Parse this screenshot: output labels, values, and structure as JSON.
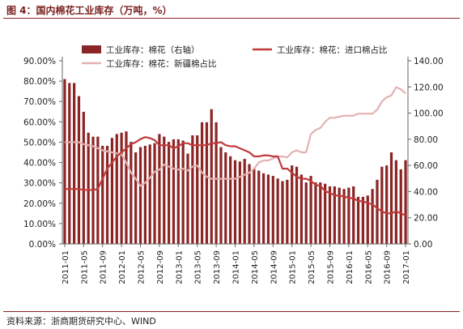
{
  "title": "图 4：国内棉花工业库存（万吨，%）",
  "source": "资料来源：浙商期货研究中心、WIND",
  "colors": {
    "bar": "#8b2525",
    "line_import": "#c0393b",
    "line_xinjiang": "#e3b1b1",
    "axis": "#666666"
  },
  "chart_data": {
    "type": "bar",
    "title": "",
    "legend_position": "top",
    "grid": false,
    "y_left": {
      "range": [
        0,
        90
      ],
      "ticks": [
        "0.00%",
        "10.00%",
        "20.00%",
        "30.00%",
        "40.00%",
        "50.00%",
        "60.00%",
        "70.00%",
        "80.00%",
        "90.00%"
      ]
    },
    "y_right": {
      "range": [
        0,
        140
      ],
      "ticks": [
        "0.00",
        "20.00",
        "40.00",
        "60.00",
        "80.00",
        "100.00",
        "120.00",
        "140.00"
      ]
    },
    "x_tick_labels": [
      "2011-01",
      "2011-05",
      "2011-09",
      "2012-01",
      "2012-05",
      "2012-09",
      "2013-01",
      "2013-05",
      "2013-09",
      "2014-01",
      "2014-05",
      "2014-09",
      "2015-01",
      "2015-05",
      "2015-09",
      "2016-01",
      "2016-05",
      "2016-09",
      "2017-01"
    ],
    "months": [
      "2011-01",
      "2011-02",
      "2011-03",
      "2011-04",
      "2011-05",
      "2011-06",
      "2011-07",
      "2011-08",
      "2011-09",
      "2011-10",
      "2011-11",
      "2011-12",
      "2012-01",
      "2012-02",
      "2012-03",
      "2012-04",
      "2012-05",
      "2012-06",
      "2012-07",
      "2012-08",
      "2012-09",
      "2012-10",
      "2012-11",
      "2012-12",
      "2013-01",
      "2013-02",
      "2013-03",
      "2013-04",
      "2013-05",
      "2013-06",
      "2013-07",
      "2013-08",
      "2013-09",
      "2013-10",
      "2013-11",
      "2013-12",
      "2014-01",
      "2014-02",
      "2014-03",
      "2014-04",
      "2014-05",
      "2014-06",
      "2014-07",
      "2014-08",
      "2014-09",
      "2014-10",
      "2014-11",
      "2014-12",
      "2015-01",
      "2015-02",
      "2015-03",
      "2015-04",
      "2015-05",
      "2015-06",
      "2015-07",
      "2015-08",
      "2015-09",
      "2015-10",
      "2015-11",
      "2015-12",
      "2016-01",
      "2016-02",
      "2016-03",
      "2016-04",
      "2016-05",
      "2016-06",
      "2016-07",
      "2016-08",
      "2016-09",
      "2016-10",
      "2016-11",
      "2016-12",
      "2017-01"
    ],
    "series": [
      {
        "name": "工业库存：棉花（右轴）",
        "type": "bar",
        "axis": "right",
        "values": [
          126,
          123,
          123,
          113,
          101,
          85,
          82,
          82,
          75,
          75,
          81,
          84,
          85,
          86,
          78,
          70,
          74,
          75,
          76,
          77,
          84,
          82,
          78,
          80,
          80,
          79,
          69,
          83,
          83,
          93,
          93,
          103,
          93,
          74,
          70,
          67,
          64,
          63,
          65,
          61,
          58,
          56,
          54,
          53,
          52,
          50,
          48,
          49,
          60,
          59,
          53,
          47,
          52,
          47,
          47,
          46,
          44,
          44,
          43,
          42,
          43,
          44,
          36,
          36,
          37,
          42,
          49,
          59,
          60,
          70,
          64,
          57,
          64
        ]
      },
      {
        "name": "工业库存：棉花：进口棉占比",
        "type": "line",
        "axis": "left",
        "values": [
          27,
          27,
          27,
          27,
          26.5,
          26.5,
          26.5,
          27,
          32,
          37,
          40,
          43,
          45,
          47,
          49,
          50,
          51.5,
          52.5,
          52,
          51,
          48.5,
          48.5,
          48.5,
          47,
          48,
          49.5,
          49.5,
          48.5,
          48.5,
          48.5,
          48.5,
          49.5,
          49.5,
          50,
          48.5,
          48,
          48,
          47,
          46,
          45,
          43,
          43,
          43.5,
          43.5,
          43,
          43,
          37,
          37,
          35,
          33,
          32,
          32,
          31,
          29,
          28.5,
          26,
          25,
          24,
          23.5,
          23.5,
          22.5,
          22.5,
          21,
          21,
          20,
          19.5,
          17.5,
          16,
          15,
          15,
          16,
          15,
          14
        ]
      },
      {
        "name": "工业库存：棉花：新疆棉占比",
        "type": "line",
        "axis": "left",
        "values": [
          50,
          50,
          50,
          50,
          49,
          48.5,
          48,
          47,
          46,
          45.5,
          45,
          44.5,
          44,
          40,
          35,
          32,
          28.5,
          30,
          32.5,
          35.5,
          36.5,
          39,
          38,
          37,
          36.5,
          37,
          36,
          38,
          38.5,
          35,
          33,
          32,
          32,
          32,
          32,
          32,
          32,
          33,
          34,
          35,
          37,
          40,
          41,
          41,
          42,
          43,
          43,
          42.5,
          45,
          46,
          45,
          45,
          54,
          56,
          57,
          60,
          62,
          62,
          62.5,
          63,
          63,
          63,
          64,
          64,
          64,
          64,
          66,
          70,
          72,
          73,
          77,
          76,
          74
        ]
      }
    ]
  }
}
